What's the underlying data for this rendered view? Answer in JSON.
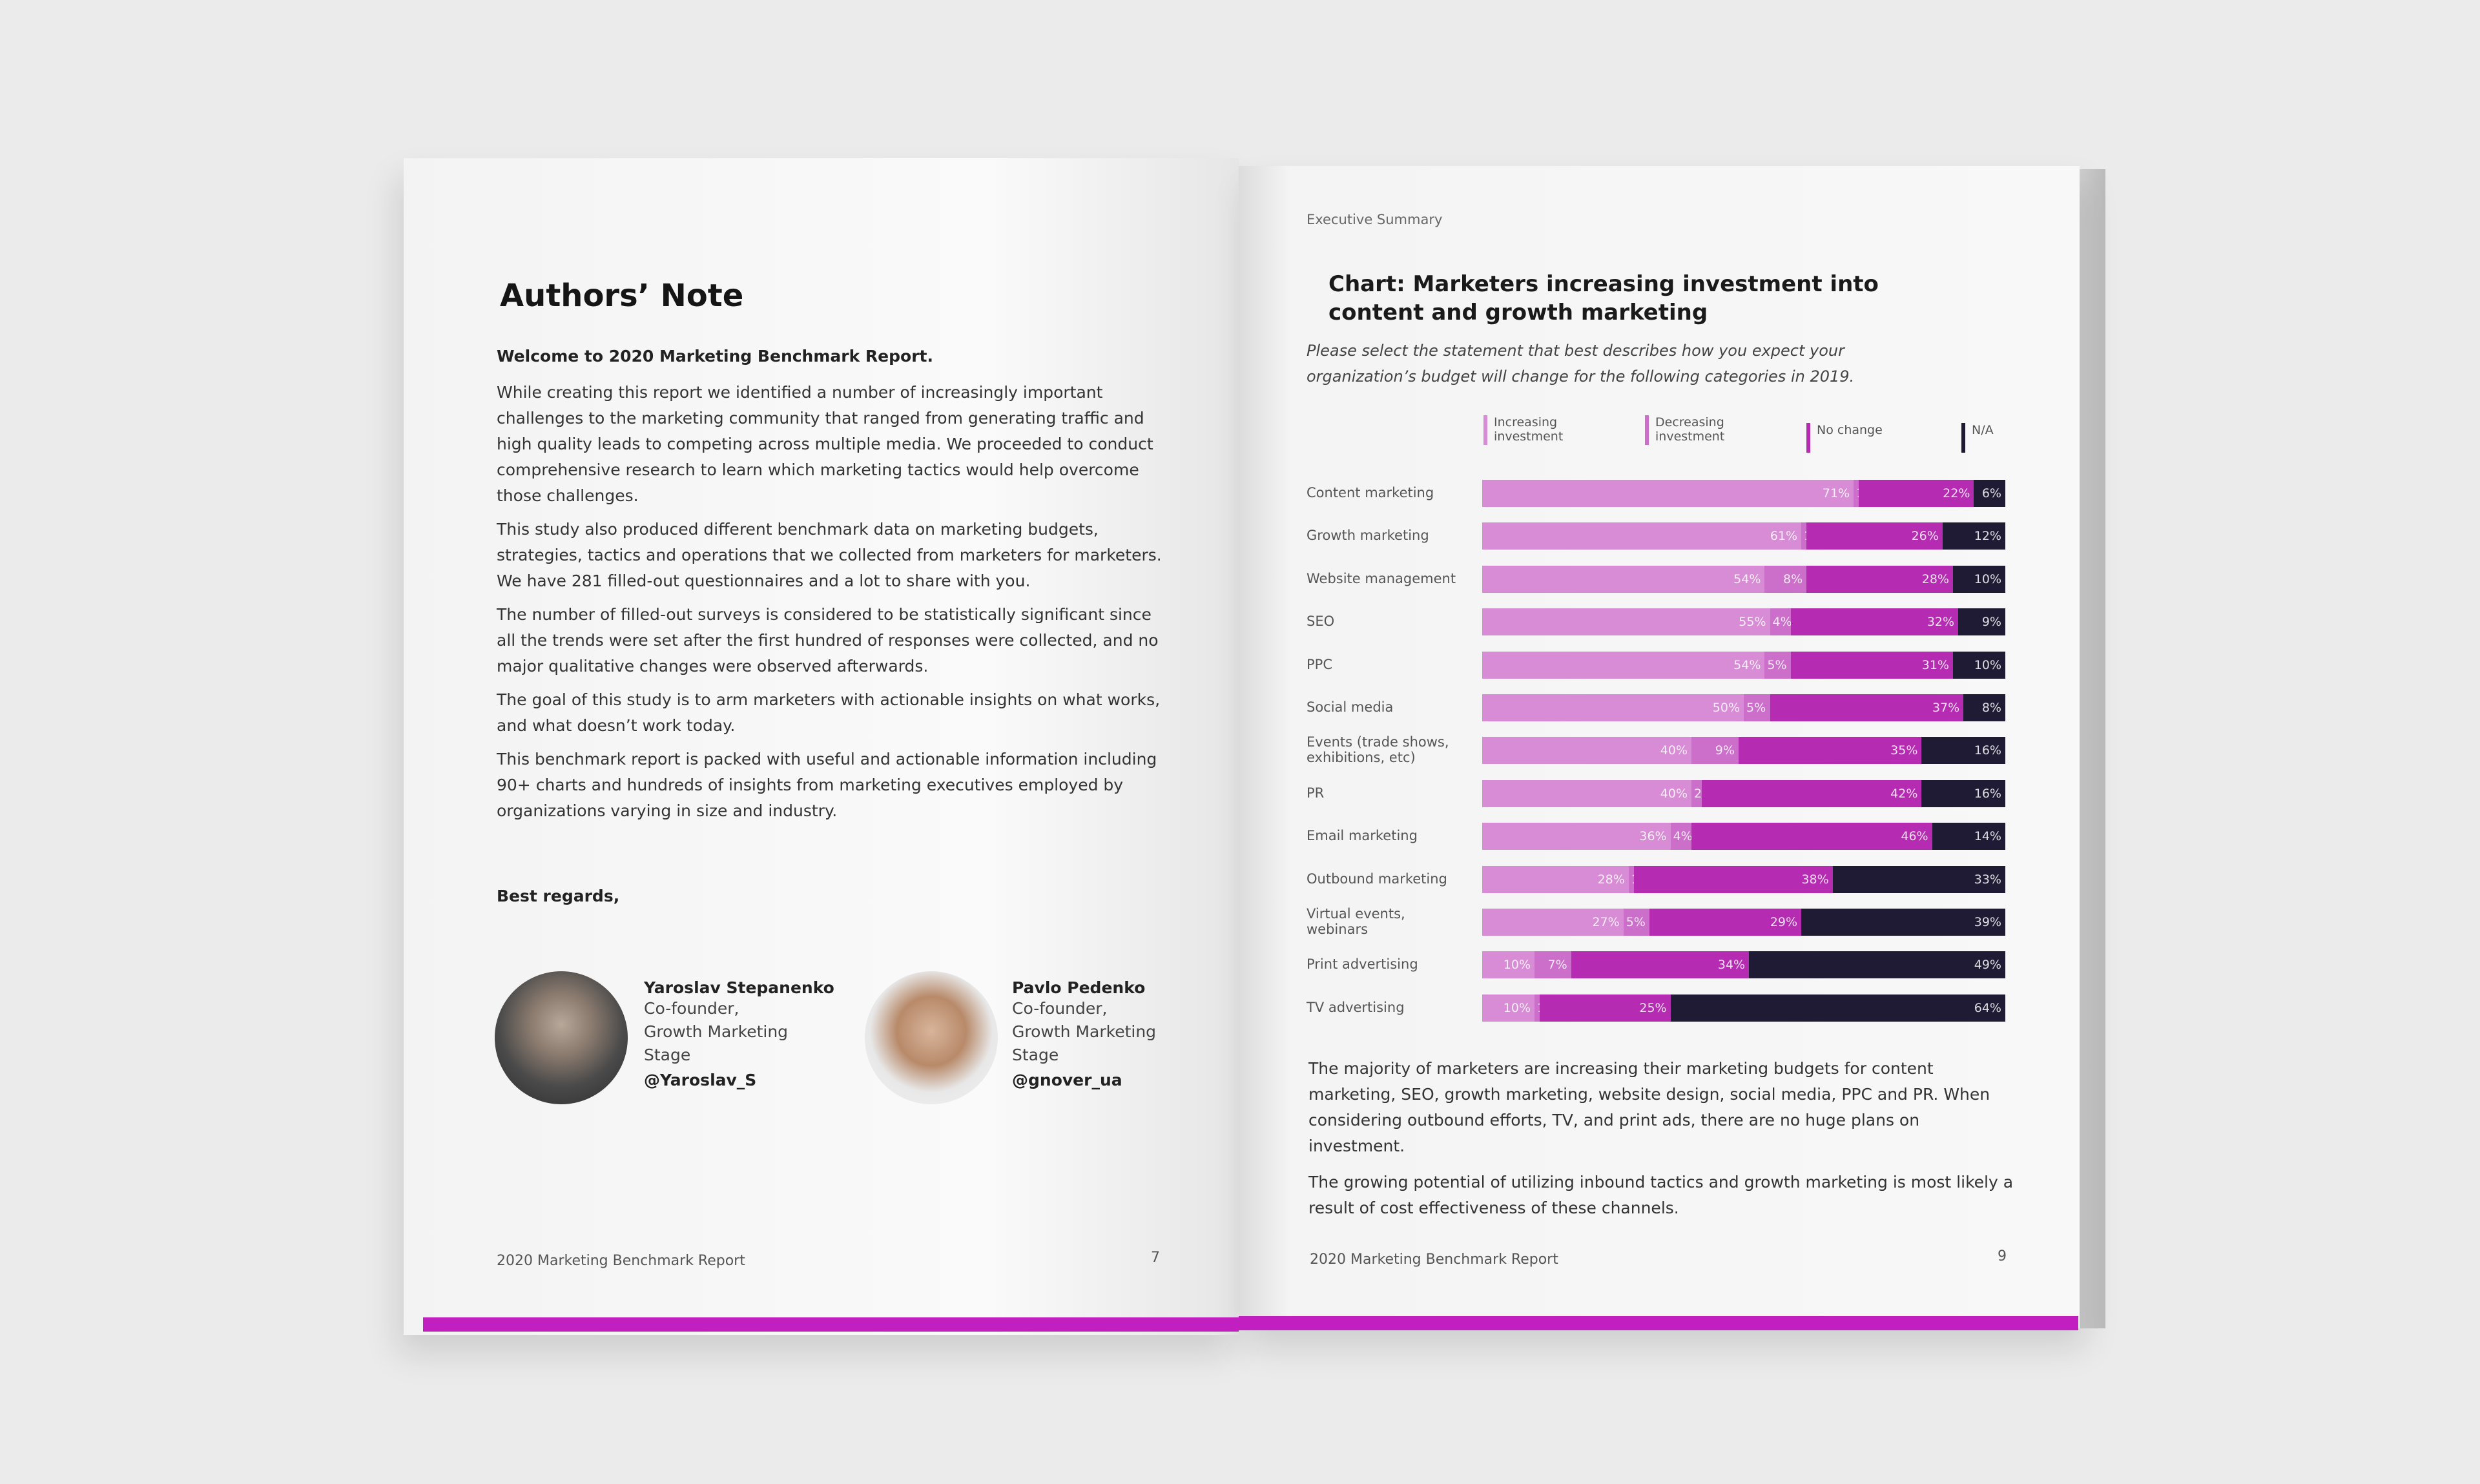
{
  "left_page": {
    "title": "Authors’ Note",
    "welcome": "Welcome to 2020 Marketing Benchmark Report.",
    "paragraphs": [
      "While creating this report we identified a number of increasingly important challenges to the marketing community that ranged from generating traffic and high quality leads to competing across multiple media. We proceeded to conduct comprehensive research to learn which marketing tactics would help overcome those challenges.",
      "This study also produced different benchmark data on marketing budgets, strategies, tactics and operations that we collected from marketers for marketers. We have 281 filled-out questionnaires and a lot to share with you.",
      "The number of filled-out surveys is considered to be statistically significant since all the trends were set after the first hundred of responses were collected, and no major qualitative changes were observed afterwards.",
      "The goal of this study is to arm marketers with actionable insights on what works, and what doesn’t work today.",
      "This benchmark report is packed with useful and actionable information including 90+ charts and hundreds of insights from marketing executives employed by organizations varying in size and industry."
    ],
    "closing": "Best regards,",
    "authors": [
      {
        "name": "Yaroslav Stepanenko",
        "role": [
          "Co-founder,",
          "Growth Marketing",
          "Stage"
        ],
        "handle": "@Yaroslav_S"
      },
      {
        "name": "Pavlo Pedenko",
        "role": [
          "Co-founder,",
          "Growth Marketing",
          "Stage"
        ],
        "handle": "@gnover_ua"
      }
    ],
    "footer": "2020 Marketing Benchmark Report",
    "page_number": "7"
  },
  "right_page": {
    "section": "Executive Summary",
    "summary_paragraphs": [
      "The majority of marketers are increasing their marketing budgets for content marketing, SEO, growth marketing, website design, social media, PPC and PR. When considering outbound efforts, TV, and print ads, there are no huge plans on investment.",
      "The growing potential of utilizing inbound tactics and growth marketing is most likely a result of cost effectiveness of these channels."
    ],
    "footer": "2020 Marketing Benchmark Report",
    "page_number": "9"
  },
  "colors": {
    "accent": "#c21fc0",
    "increasing": "#d78cd5",
    "decreasing": "#cc6fca",
    "no_change": "#b52cb3",
    "na": "#1f1b35"
  },
  "chart_data": {
    "type": "bar",
    "orientation": "horizontal-stacked-100",
    "title": "Chart: Marketers increasing investment into content and growth marketing",
    "subtitle": "Please select the statement that best describes how you expect your organization’s budget will change for the following categories in 2019.",
    "legend_placement": "top",
    "categories": [
      "Content marketing",
      "Growth marketing",
      "Website management",
      "SEO",
      "PPC",
      "Social media",
      "Events (trade shows, exhibitions, etc)",
      "PR",
      "Email marketing",
      "Outbound marketing",
      "Virtual events, webinars",
      "Print advertising",
      "TV advertising"
    ],
    "series": [
      {
        "name": "Increasing investment",
        "values": [
          71,
          61,
          54,
          55,
          54,
          50,
          40,
          40,
          36,
          28,
          27,
          10,
          10
        ]
      },
      {
        "name": "Decreasing investment",
        "values": [
          1,
          1,
          8,
          4,
          5,
          5,
          9,
          2,
          4,
          1,
          5,
          7,
          1
        ]
      },
      {
        "name": "No change",
        "values": [
          22,
          26,
          28,
          32,
          31,
          37,
          35,
          42,
          46,
          38,
          29,
          34,
          25
        ]
      },
      {
        "name": "N/A",
        "values": [
          6,
          12,
          10,
          9,
          10,
          8,
          16,
          16,
          14,
          33,
          39,
          49,
          64
        ]
      }
    ],
    "unit": "%"
  }
}
